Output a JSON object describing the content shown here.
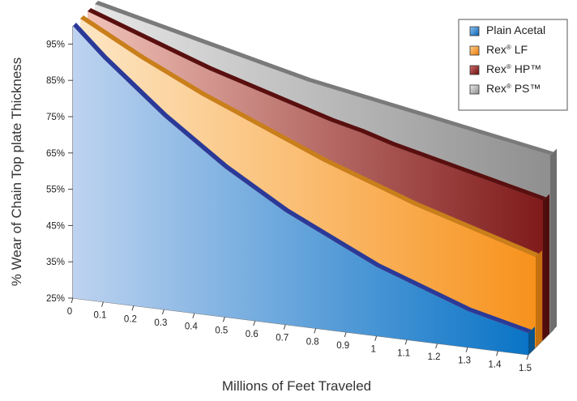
{
  "chart_data": {
    "type": "area",
    "title": "",
    "xlabel": "Millions of Feet Traveled",
    "ylabel": "% Wear of Chain Top plate Thickness",
    "x_ticks": [
      "0",
      "0.1",
      "0.2",
      "0.3",
      "0.4",
      "0.5",
      "0.6",
      "0.7",
      "0.8",
      "0.9",
      "1",
      "1.1",
      "1.2",
      "1.3",
      "1.4",
      "1.5"
    ],
    "y_ticks": [
      "25%",
      "35%",
      "45%",
      "55%",
      "65%",
      "75%",
      "85%",
      "95%"
    ],
    "xlim": [
      0,
      1.5
    ],
    "ylim": [
      25,
      100
    ],
    "legend_position": "top-right",
    "x": [
      0,
      0.1,
      0.2,
      0.3,
      0.4,
      0.5,
      0.6,
      0.7,
      0.8,
      0.9,
      1.0,
      1.1,
      1.2,
      1.3,
      1.4,
      1.5
    ],
    "series": [
      {
        "name": "Plain Acetal",
        "base": "Plain Acetal",
        "sup": "",
        "mark": "",
        "color": "#1f72c4",
        "values": [
          100,
          92,
          85,
          78,
          72,
          66,
          61,
          56,
          52,
          48,
          44,
          41,
          38,
          35,
          33,
          31
        ]
      },
      {
        "name": "Rex® LF",
        "base": "Rex",
        "sup": "®",
        "mark": " LF",
        "color": "#f7941d",
        "values": [
          100,
          95.5,
          91,
          87,
          83,
          79.5,
          76,
          72.5,
          69,
          66,
          63,
          60,
          57.5,
          55,
          52.5,
          50
        ]
      },
      {
        "name": "Rex® HP™",
        "base": "Rex",
        "sup": "®",
        "mark": " HP™",
        "color": "#8b1e1e",
        "values": [
          100,
          97,
          94,
          91,
          88,
          85.5,
          83,
          80.5,
          78,
          76,
          73.5,
          71.5,
          69.5,
          67.5,
          65.5,
          63.5
        ]
      },
      {
        "name": "Rex® PS™",
        "base": "Rex",
        "sup": "®",
        "mark": " PS™",
        "color": "#9a9a9a",
        "values": [
          100,
          98,
          96,
          94,
          92,
          90,
          88,
          86,
          84.5,
          83,
          81.5,
          80,
          78.5,
          77,
          75.5,
          74
        ]
      }
    ]
  }
}
